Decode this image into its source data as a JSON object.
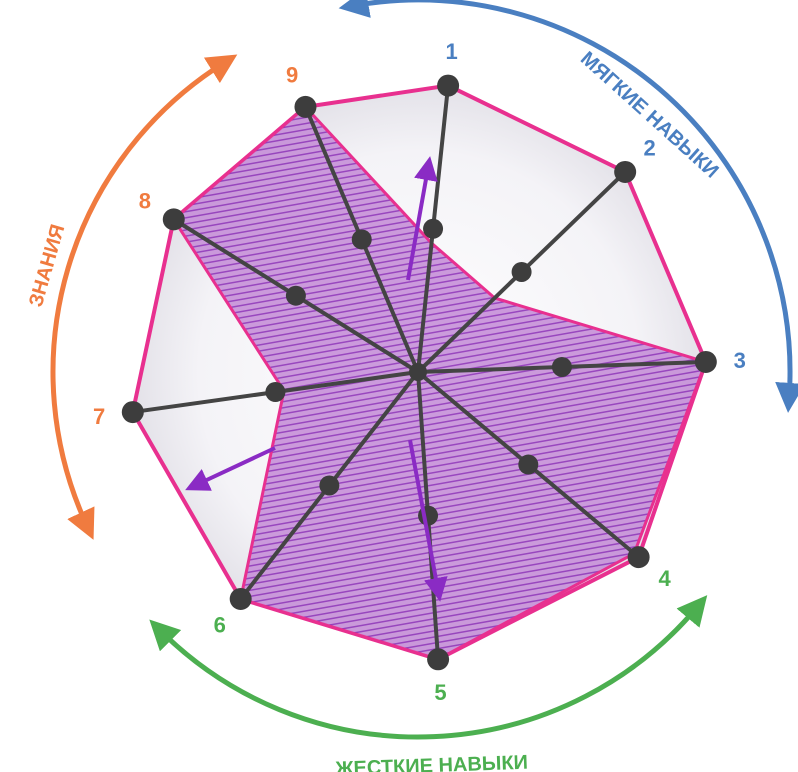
{
  "axes": [
    {
      "label": "1",
      "group": "soft",
      "current": 0.45
    },
    {
      "label": "2",
      "group": "soft",
      "current": 0.37
    },
    {
      "label": "3",
      "group": "soft",
      "current": 1.0
    },
    {
      "label": "4",
      "group": "hard",
      "current": 0.98
    },
    {
      "label": "5",
      "group": "hard",
      "current": 1.0
    },
    {
      "label": "6",
      "group": "hard",
      "current": 1.0
    },
    {
      "label": "7",
      "group": "knowledge",
      "current": 0.47
    },
    {
      "label": "8",
      "group": "knowledge",
      "current": 1.0
    },
    {
      "label": "9",
      "group": "knowledge",
      "current": 1.0
    }
  ],
  "arcs": {
    "soft": {
      "label": "МЯГКИЕ НАВЫКИ",
      "color": "#4a7fc1"
    },
    "hard": {
      "label": "ЖЕСТКИЕ НАВЫКИ",
      "color": "#4caf50"
    },
    "knowledge": {
      "label": "ЗНАНИЯ",
      "color": "#f07b3f"
    }
  },
  "colors": {
    "spoke": "#444444",
    "node": "#3d3d3d",
    "outline": "#e8308f",
    "fill": "#9b3fc4",
    "arrow": "#8a2bc4"
  }
}
